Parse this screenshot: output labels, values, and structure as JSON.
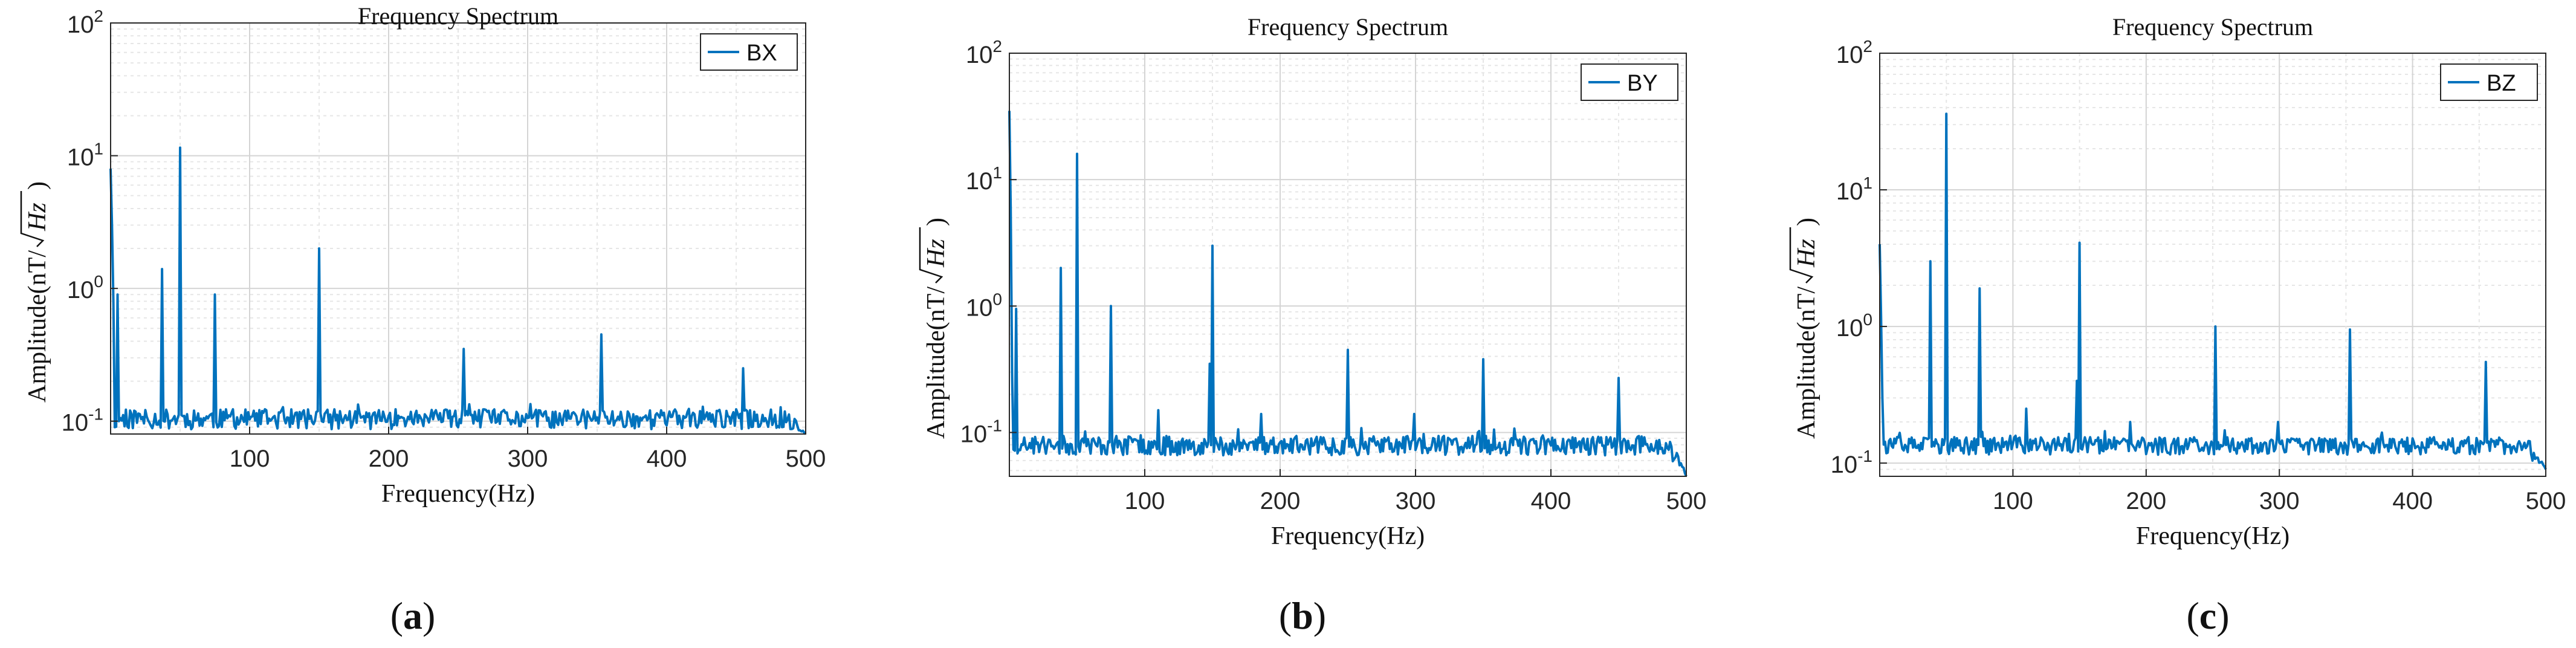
{
  "colors": {
    "line": "#0072BD",
    "axis": "#262626",
    "tick_text": "#262626",
    "major_grid": "#d4d4d4",
    "minor_grid": "#e6e6e6"
  },
  "chart_data": [
    {
      "type": "line",
      "id": "a",
      "title": "Frequency Spectrum",
      "xlabel": "Frequency(Hz)",
      "ylabel_prefix": "Amplitude(nT/",
      "ylabel_radicand": "Hz",
      "ylabel_suffix": ")",
      "caption_letter": "a",
      "legend": [
        "BX"
      ],
      "legend_position": "top-right",
      "xlim": [
        0,
        500
      ],
      "ylim": [
        0.08,
        100
      ],
      "yscale": "log",
      "grid": true,
      "xticks": [
        100,
        200,
        300,
        400,
        500
      ],
      "xtick_labels": [
        "100",
        "200",
        "300",
        "400",
        "500"
      ],
      "yticks": [
        0.1,
        1,
        10,
        100
      ],
      "ytick_bases": [
        "10",
        "10",
        "10",
        "10"
      ],
      "ytick_exps": [
        "-1",
        "0",
        "1",
        "2"
      ],
      "baseline": 0.105,
      "noise": 0.018,
      "seed": 11,
      "series": [
        {
          "name": "BX",
          "peaks": [
            [
              0,
              8
            ],
            [
              1,
              3
            ],
            [
              2,
              0.8
            ],
            [
              5,
              0.9
            ],
            [
              37,
              1.4
            ],
            [
              50,
              11.5
            ],
            [
              75,
              0.9
            ],
            [
              150,
              2.0
            ],
            [
              254,
              0.35
            ],
            [
              353,
              0.45
            ],
            [
              455,
              0.25
            ]
          ],
          "tail": [
            [
              490,
              0.09
            ],
            [
              500,
              0.08
            ]
          ]
        }
      ]
    },
    {
      "type": "line",
      "id": "b",
      "title": "Frequency Spectrum",
      "xlabel": "Frequency(Hz)",
      "ylabel_prefix": "Amplitude(nT/",
      "ylabel_radicand": "Hz",
      "ylabel_suffix": ")",
      "caption_letter": "b",
      "legend": [
        "BY"
      ],
      "legend_position": "top-right",
      "xlim": [
        0,
        500
      ],
      "ylim": [
        0.045,
        100
      ],
      "yscale": "log",
      "grid": true,
      "xticks": [
        100,
        200,
        300,
        400,
        500
      ],
      "xtick_labels": [
        "100",
        "200",
        "300",
        "400",
        "500"
      ],
      "yticks": [
        0.1,
        1,
        10,
        100
      ],
      "ytick_bases": [
        "10",
        "10",
        "10",
        "10"
      ],
      "ytick_exps": [
        "-1",
        "0",
        "1",
        "2"
      ],
      "baseline": 0.08,
      "noise": 0.014,
      "seed": 23,
      "series": [
        {
          "name": "BY",
          "peaks": [
            [
              0,
              35
            ],
            [
              1,
              6
            ],
            [
              2,
              0.3
            ],
            [
              5,
              0.95
            ],
            [
              38,
              2.0
            ],
            [
              50,
              16
            ],
            [
              75,
              1.0
            ],
            [
              110,
              0.15
            ],
            [
              148,
              0.35
            ],
            [
              150,
              3.0
            ],
            [
              186,
              0.14
            ],
            [
              250,
              0.45
            ],
            [
              299,
              0.14
            ],
            [
              350,
              0.38
            ],
            [
              450,
              0.27
            ]
          ],
          "tail": [
            [
              490,
              0.065
            ],
            [
              500,
              0.045
            ]
          ]
        }
      ]
    },
    {
      "type": "line",
      "id": "c",
      "title": "Frequency Spectrum",
      "xlabel": "Frequency(Hz)",
      "ylabel_prefix": "Amplitude(nT/",
      "ylabel_radicand": "Hz",
      "ylabel_suffix": ")",
      "caption_letter": "c",
      "legend": [
        "BZ"
      ],
      "legend_position": "top-right",
      "xlim": [
        0,
        500
      ],
      "ylim": [
        0.08,
        100
      ],
      "yscale": "log",
      "grid": true,
      "xticks": [
        100,
        200,
        300,
        400,
        500
      ],
      "xtick_labels": [
        "100",
        "200",
        "300",
        "400",
        "500"
      ],
      "yticks": [
        0.1,
        1,
        10,
        100
      ],
      "ytick_bases": [
        "10",
        "10",
        "10",
        "10"
      ],
      "ytick_exps": [
        "-1",
        "0",
        "1",
        "2"
      ],
      "baseline": 0.135,
      "noise": 0.02,
      "seed": 37,
      "series": [
        {
          "name": "BZ",
          "peaks": [
            [
              0,
              4
            ],
            [
              1,
              1.2
            ],
            [
              2,
              0.3
            ],
            [
              38,
              3.0
            ],
            [
              50,
              36
            ],
            [
              75,
              1.9
            ],
            [
              110,
              0.25
            ],
            [
              148,
              0.4
            ],
            [
              150,
              4.1
            ],
            [
              188,
              0.2
            ],
            [
              252,
              1.0
            ],
            [
              299,
              0.2
            ],
            [
              353,
              0.95
            ],
            [
              455,
              0.55
            ]
          ],
          "tail": [
            [
              490,
              0.11
            ],
            [
              500,
              0.09
            ]
          ]
        }
      ]
    }
  ]
}
